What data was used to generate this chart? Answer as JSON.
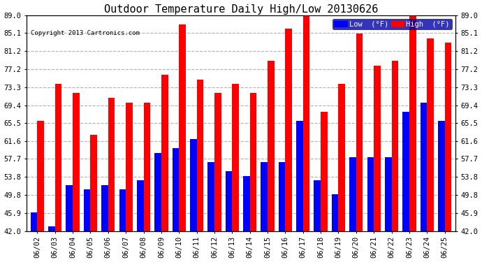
{
  "title": "Outdoor Temperature Daily High/Low 20130626",
  "copyright": "Copyright 2013 Cartronics.com",
  "legend_low": "Low  (°F)",
  "legend_high": "High  (°F)",
  "dates": [
    "06/02",
    "06/03",
    "06/04",
    "06/05",
    "06/06",
    "06/07",
    "06/08",
    "06/09",
    "06/10",
    "06/11",
    "06/12",
    "06/13",
    "06/14",
    "06/15",
    "06/16",
    "06/17",
    "06/18",
    "06/19",
    "06/20",
    "06/21",
    "06/22",
    "06/23",
    "06/24",
    "06/25"
  ],
  "low": [
    46,
    43,
    52,
    51,
    52,
    51,
    53,
    59,
    60,
    62,
    57,
    55,
    54,
    57,
    57,
    66,
    53,
    50,
    58,
    58,
    58,
    68,
    70,
    66
  ],
  "high": [
    66,
    74,
    72,
    63,
    71,
    70,
    70,
    76,
    87,
    75,
    72,
    74,
    72,
    79,
    86,
    89,
    68,
    74,
    85,
    78,
    79,
    89,
    84,
    83
  ],
  "ymin": 42.0,
  "ymax": 89.0,
  "yticks": [
    42.0,
    45.9,
    49.8,
    53.8,
    57.7,
    61.6,
    65.5,
    69.4,
    73.3,
    77.2,
    81.2,
    85.1,
    89.0
  ],
  "low_color": "#0000ff",
  "high_color": "#ff0000",
  "bg_color": "#ffffff",
  "grid_color": "#b0b0b0",
  "title_fontsize": 11,
  "tick_fontsize": 7.5,
  "bar_width": 0.38
}
